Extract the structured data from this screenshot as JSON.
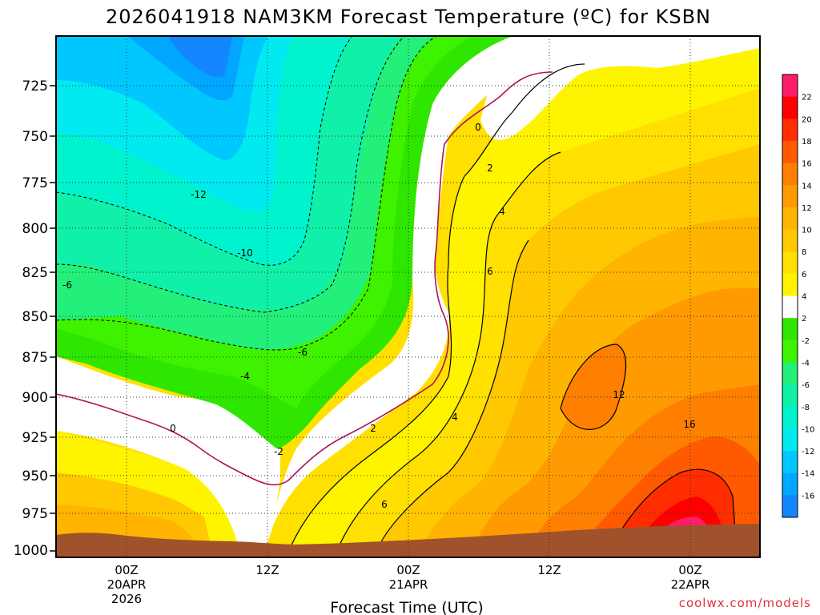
{
  "chart_data": {
    "type": "heatmap",
    "title": "2026041918 NAM3KM Forecast Temperature (ºC) for KSBN",
    "xlabel": "Forecast Time (UTC)",
    "ylabel": "",
    "y_axis": {
      "orientation": "inverted",
      "ylim": [
        1000,
        700
      ],
      "ticks": [
        "725",
        "750",
        "775",
        "800",
        "825",
        "850",
        "875",
        "900",
        "925",
        "950",
        "975",
        "1000"
      ]
    },
    "x_axis": {
      "ticks": [
        {
          "lines": [
            "00Z",
            "20APR",
            "2026"
          ]
        },
        {
          "lines": [
            "12Z"
          ]
        },
        {
          "lines": [
            "00Z",
            "21APR"
          ]
        },
        {
          "lines": [
            "12Z"
          ]
        },
        {
          "lines": [
            "00Z",
            "22APR"
          ]
        }
      ]
    },
    "grid": true,
    "colorbar": {
      "labels": [
        "22",
        "20",
        "18",
        "16",
        "14",
        "12",
        "10",
        "8",
        "6",
        "4",
        "2",
        "-2",
        "-4",
        "-6",
        "-8",
        "-10",
        "-12",
        "-14",
        "-16"
      ],
      "colors": [
        "#ff1d6b",
        "#ff0000",
        "#ff2d00",
        "#ff5a00",
        "#ff7f00",
        "#ff9b00",
        "#ffb400",
        "#ffc800",
        "#ffe000",
        "#fff400",
        "#ffffff",
        "#2ee600",
        "#3ff200",
        "#22f07a",
        "#11f0a8",
        "#00f3cc",
        "#00eaf0",
        "#00c8ff",
        "#00a6ff",
        "#1486ff"
      ]
    },
    "contour_labels": [
      "0",
      "2",
      "4",
      "6",
      "-12",
      "-10",
      "-6",
      "-6",
      "-4",
      "-2",
      "0",
      "2",
      "4",
      "6",
      "12",
      "16"
    ],
    "approx_max_temperature": 22,
    "approx_min_temperature": -17
  },
  "credit": "coolwx.com/models"
}
